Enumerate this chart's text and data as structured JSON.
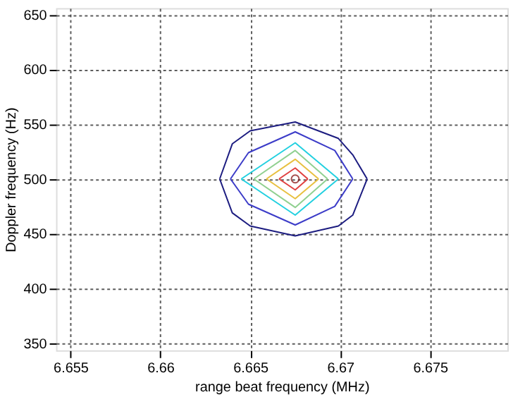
{
  "chart_data": {
    "type": "line",
    "xlabel": "range beat frequency (MHz)",
    "ylabel": "Doppler frequency (Hz)",
    "xlim": [
      6.6542,
      6.6793
    ],
    "ylim": [
      343.5,
      656
    ],
    "xticks": [
      6.655,
      6.66,
      6.665,
      6.67,
      6.675
    ],
    "yticks": [
      350,
      400,
      450,
      500,
      550,
      600,
      650
    ],
    "grid": true,
    "line_style": "solid",
    "marker": "none",
    "series": [
      {
        "color": "#1c1c80",
        "x": [
          6.6633,
          6.664,
          6.665,
          6.6675,
          6.6699,
          6.6707,
          6.6715
        ],
        "values": [
          500,
          532,
          544,
          552,
          537,
          522,
          500
        ]
      },
      {
        "color": "#1c1c80",
        "x": [
          6.6633,
          6.664,
          6.665,
          6.6675,
          6.6699,
          6.6707,
          6.6715
        ],
        "values": [
          500,
          469,
          457,
          448,
          457,
          467,
          500
        ]
      },
      {
        "color": "#3c3cc8",
        "x": [
          6.6639,
          6.6649,
          6.6675,
          6.6697,
          6.6707
        ],
        "values": [
          500,
          524,
          543,
          526,
          500
        ]
      },
      {
        "color": "#3c3cc8",
        "x": [
          6.6639,
          6.6649,
          6.6675,
          6.6697,
          6.6707
        ],
        "values": [
          500,
          477,
          458,
          475,
          500
        ]
      },
      {
        "color": "#22d0e0",
        "x": [
          6.6645,
          6.6675,
          6.6699
        ],
        "values": [
          500,
          533,
          500
        ]
      },
      {
        "color": "#22d0e0",
        "x": [
          6.6645,
          6.6675,
          6.6699
        ],
        "values": [
          500,
          467,
          500
        ]
      },
      {
        "color": "#90d090",
        "x": [
          6.6652,
          6.6675,
          6.6693
        ],
        "values": [
          500,
          526,
          500
        ]
      },
      {
        "color": "#90d090",
        "x": [
          6.6652,
          6.6675,
          6.6693
        ],
        "values": [
          500,
          474,
          500
        ]
      },
      {
        "color": "#e8c040",
        "x": [
          6.6659,
          6.6675,
          6.6688
        ],
        "values": [
          500,
          518,
          500
        ]
      },
      {
        "color": "#e8c040",
        "x": [
          6.6659,
          6.6675,
          6.6688
        ],
        "values": [
          500,
          482,
          500
        ]
      },
      {
        "color": "#e04040",
        "x": [
          6.6666,
          6.6675,
          6.6682
        ],
        "values": [
          500,
          510,
          500
        ]
      },
      {
        "color": "#e04040",
        "x": [
          6.6666,
          6.6675,
          6.6682
        ],
        "values": [
          500,
          490,
          500
        ]
      },
      {
        "color": "#800000",
        "type": "scatter",
        "marker": "circle",
        "x": [
          6.6675
        ],
        "values": [
          500
        ]
      }
    ]
  }
}
